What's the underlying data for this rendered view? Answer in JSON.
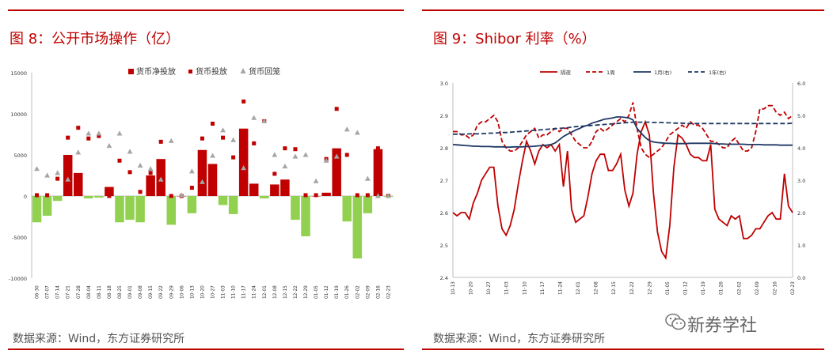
{
  "left": {
    "title": "图 8：公开市场操作（亿）",
    "source": "数据来源：Wind，东方证券研究所"
  },
  "right": {
    "title": "图 9：Shibor 利率（%）",
    "source": "数据来源：Wind，东方证券研究所"
  },
  "watermark": "新券学社",
  "colors": {
    "red": "#c00000",
    "green": "#92d050",
    "gray": "#a6a6a6",
    "navy": "#1f3864",
    "rule": "#c00000"
  },
  "chart_data": [
    {
      "type": "bar",
      "ylim": [
        -10000,
        15000
      ],
      "yticks": [
        -10000,
        -5000,
        0,
        5000,
        10000,
        15000
      ],
      "categories": [
        "06-30",
        "07-07",
        "07-14",
        "07-21",
        "07-28",
        "08-04",
        "08-11",
        "08-18",
        "08-25",
        "09-01",
        "09-08",
        "09-15",
        "09-22",
        "09-29",
        "10-06",
        "10-13",
        "10-20",
        "10-27",
        "11-03",
        "11-10",
        "11-17",
        "11-24",
        "12-01",
        "12-08",
        "12-15",
        "12-22",
        "12-29",
        "01-05",
        "01-12",
        "01-19",
        "01-26",
        "02-02",
        "02-09",
        "02-16",
        "02-23"
      ],
      "category_labels": [
        "06-30",
        "07-07",
        "07-14",
        "07-21",
        "07-28",
        "08-04",
        "08-11",
        "08-18",
        "08-25",
        "09-01",
        "09-08",
        "09-15",
        "09-22",
        "09-29",
        "10-06",
        "10-13",
        "10-20",
        "10-27",
        "11-03",
        "11-10",
        "11-17",
        "11-24",
        "12-01",
        "12-08",
        "12-15",
        "12-22",
        "12-29",
        "01-05",
        "01-12",
        "01-19",
        "01-26",
        "02-02",
        "02-09",
        "02-16",
        "02-23"
      ],
      "legend_position": "top",
      "series": [
        {
          "name": "货币净投放",
          "kind": "bar",
          "values": [
            -3200,
            -2400,
            -600,
            5000,
            2800,
            -300,
            -200,
            1100,
            -3200,
            -2900,
            -3200,
            2500,
            4500,
            -3500,
            0,
            -2100,
            5600,
            3900,
            -1100,
            -2200,
            8200,
            1500,
            -300,
            1400,
            2000,
            -2900,
            -4900,
            0,
            400,
            5800,
            -3100,
            -7600,
            -2100,
            5700,
            -100
          ]
        },
        {
          "name": "货币投放",
          "kind": "marker",
          "values": [
            100,
            100,
            2100,
            7100,
            8300,
            7000,
            7300,
            0,
            4300,
            2900,
            500,
            2800,
            6600,
            0,
            0,
            1000,
            7000,
            8800,
            7100,
            4700,
            11500,
            6400,
            9100,
            2700,
            5800,
            5700,
            100,
            100,
            4500,
            10600,
            5000,
            100,
            100,
            5800,
            0
          ]
        },
        {
          "name": "货币回笼",
          "kind": "marker",
          "values": [
            3300,
            2500,
            2800,
            2000,
            5300,
            7600,
            7600,
            6100,
            7600,
            5400,
            3700,
            3300,
            2000,
            6700,
            100,
            3000,
            1700,
            4900,
            8000,
            6800,
            3400,
            9500,
            9100,
            5000,
            3600,
            4800,
            5000,
            1800,
            4300,
            4800,
            8100,
            7700,
            2100,
            0,
            0
          ]
        }
      ]
    },
    {
      "type": "line",
      "ylim_left": [
        2.4,
        3.0
      ],
      "yticks_left": [
        2.4,
        2.5,
        2.6,
        2.7,
        2.8,
        2.9,
        3.0
      ],
      "ylim_right": [
        0.0,
        6.0
      ],
      "yticks_right": [
        0.0,
        1.0,
        2.0,
        3.0,
        4.0,
        5.0,
        6.0
      ],
      "x_labels": [
        "10-13",
        "10-20",
        "10-27",
        "11-03",
        "11-10",
        "11-17",
        "11-24",
        "12-01",
        "12-08",
        "12-15",
        "12-22",
        "12-29",
        "01-05",
        "01-12",
        "01-19",
        "01-26",
        "02-02",
        "02-09",
        "02-16",
        "02-23"
      ],
      "legend_position": "top",
      "series": [
        {
          "name": "隔夜",
          "axis": "left",
          "style": "solid",
          "color": "#c00000",
          "values": [
            2.6,
            2.59,
            2.6,
            2.6,
            2.58,
            2.63,
            2.66,
            2.7,
            2.72,
            2.74,
            2.74,
            2.62,
            2.55,
            2.53,
            2.56,
            2.61,
            2.69,
            2.76,
            2.82,
            2.79,
            2.75,
            2.79,
            2.81,
            2.8,
            2.81,
            2.79,
            2.81,
            2.68,
            2.79,
            2.61,
            2.57,
            2.58,
            2.59,
            2.65,
            2.72,
            2.76,
            2.78,
            2.78,
            2.73,
            2.73,
            2.75,
            2.78,
            2.67,
            2.62,
            2.66,
            2.78,
            2.85,
            2.88,
            2.84,
            2.66,
            2.54,
            2.48,
            2.46,
            2.56,
            2.74,
            2.84,
            2.83,
            2.81,
            2.78,
            2.77,
            2.77,
            2.76,
            2.76,
            2.81,
            2.61,
            2.58,
            2.57,
            2.56,
            2.59,
            2.58,
            2.59,
            2.52,
            2.52,
            2.53,
            2.55,
            2.55,
            2.57,
            2.59,
            2.6,
            2.58,
            2.58,
            2.72,
            2.62,
            2.6
          ]
        },
        {
          "name": "1周",
          "axis": "left",
          "style": "dash",
          "color": "#c00000",
          "values": [
            2.85,
            2.85,
            2.84,
            2.84,
            2.83,
            2.84,
            2.87,
            2.88,
            2.88,
            2.89,
            2.9,
            2.88,
            2.82,
            2.8,
            2.79,
            2.79,
            2.8,
            2.82,
            2.84,
            2.85,
            2.86,
            2.83,
            2.84,
            2.84,
            2.85,
            2.86,
            2.85,
            2.86,
            2.86,
            2.84,
            2.82,
            2.81,
            2.8,
            2.8,
            2.82,
            2.85,
            2.86,
            2.85,
            2.86,
            2.87,
            2.88,
            2.89,
            2.88,
            2.9,
            2.94,
            2.86,
            2.8,
            2.78,
            2.77,
            2.78,
            2.79,
            2.8,
            2.82,
            2.84,
            2.85,
            2.86,
            2.87,
            2.86,
            2.88,
            2.87,
            2.87,
            2.86,
            2.84,
            2.82,
            2.82,
            2.81,
            2.8,
            2.8,
            2.82,
            2.83,
            2.81,
            2.79,
            2.79,
            2.8,
            2.85,
            2.92,
            2.92,
            2.93,
            2.93,
            2.91,
            2.9,
            2.91,
            2.89,
            2.9
          ]
        },
        {
          "name": "1月(右)",
          "axis": "right",
          "style": "solid",
          "color": "#1f3864",
          "values": [
            4.1,
            4.09,
            4.08,
            4.07,
            4.06,
            4.05,
            4.05,
            4.04,
            4.04,
            4.04,
            4.03,
            4.03,
            4.03,
            4.02,
            4.02,
            4.03,
            4.03,
            4.03,
            4.04,
            4.04,
            4.05,
            4.06,
            4.07,
            4.08,
            4.1,
            4.15,
            4.25,
            4.35,
            4.42,
            4.48,
            4.55,
            4.6,
            4.66,
            4.7,
            4.76,
            4.8,
            4.84,
            4.88,
            4.9,
            4.92,
            4.95,
            4.95,
            4.94,
            4.92,
            4.86,
            4.6,
            4.45,
            4.32,
            4.22,
            4.18,
            4.16,
            4.15,
            4.14,
            4.14,
            4.13,
            4.13,
            4.13,
            4.13,
            4.14,
            4.14,
            4.14,
            4.14,
            4.14,
            4.14,
            4.13,
            4.12,
            4.12,
            4.11,
            4.11,
            4.11,
            4.11,
            4.11,
            4.1,
            4.1,
            4.1,
            4.1,
            4.09,
            4.09,
            4.09,
            4.09,
            4.08,
            4.08,
            4.08,
            4.08
          ]
        },
        {
          "name": "1年(右)",
          "axis": "right",
          "style": "dash",
          "color": "#1f3864",
          "values": [
            4.42,
            4.42,
            4.42,
            4.42,
            4.43,
            4.43,
            4.43,
            4.44,
            4.44,
            4.45,
            4.45,
            4.46,
            4.47,
            4.47,
            4.48,
            4.49,
            4.5,
            4.51,
            4.52,
            4.53,
            4.54,
            4.55,
            4.56,
            4.57,
            4.58,
            4.59,
            4.6,
            4.61,
            4.62,
            4.64,
            4.65,
            4.66,
            4.67,
            4.68,
            4.69,
            4.7,
            4.71,
            4.72,
            4.73,
            4.74,
            4.75,
            4.76,
            4.77,
            4.78,
            4.79,
            4.79,
            4.79,
            4.79,
            4.79,
            4.78,
            4.78,
            4.78,
            4.77,
            4.77,
            4.76,
            4.76,
            4.76,
            4.75,
            4.75,
            4.75,
            4.75,
            4.75,
            4.75,
            4.75,
            4.75,
            4.75,
            4.75,
            4.75,
            4.75,
            4.75,
            4.75,
            4.75,
            4.75,
            4.75,
            4.75,
            4.75,
            4.75,
            4.75,
            4.75,
            4.75,
            4.75,
            4.75,
            4.75,
            4.76
          ]
        }
      ]
    }
  ]
}
